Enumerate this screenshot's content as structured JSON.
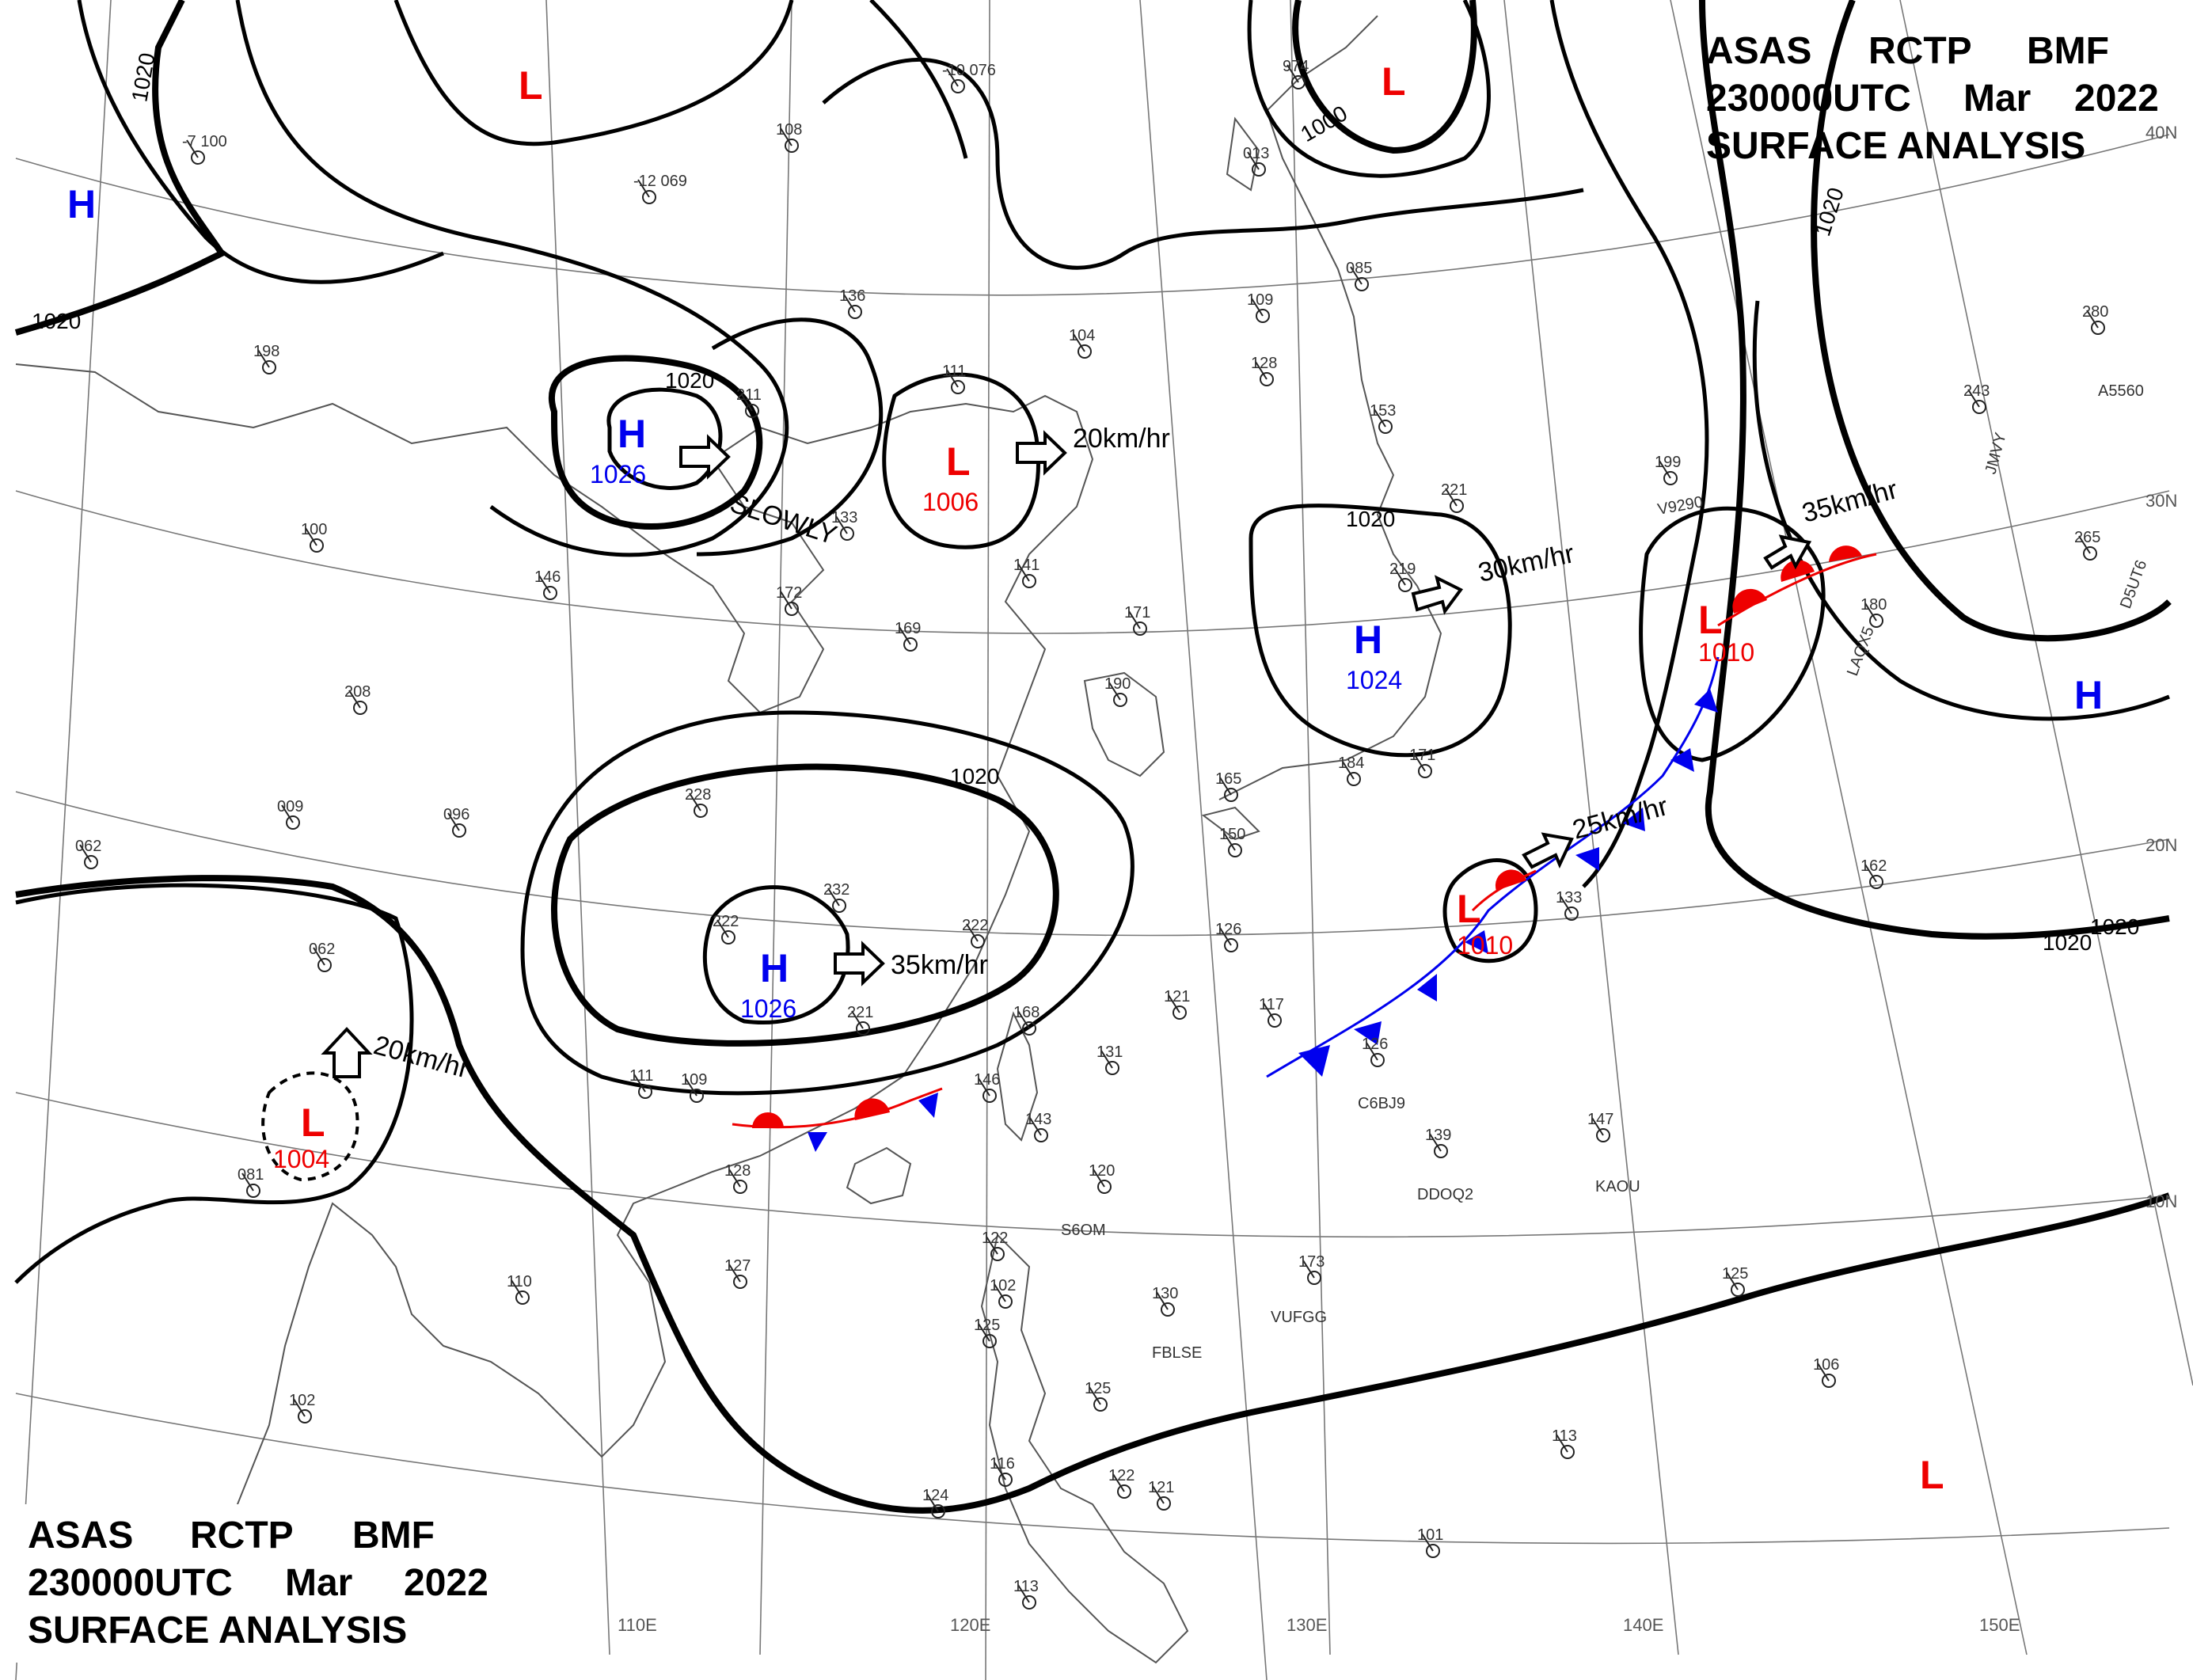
{
  "header": {
    "line1": [
      "ASAS",
      "RCTP",
      "BMF"
    ],
    "line2": [
      "230000UTC",
      "Mar",
      "2022"
    ],
    "line3": "SURFACE ANALYSIS"
  },
  "colors": {
    "high": "#0000ee",
    "low": "#ee0000",
    "isobar": "#000000",
    "coastline": "#555555",
    "grid": "#777777",
    "cold_front": "#0000ee",
    "warm_front": "#ee0000"
  },
  "grid_labels": {
    "longitudes": [
      "110E",
      "120E",
      "130E",
      "140E",
      "150E"
    ],
    "latitudes": [
      "40N",
      "30N",
      "20N",
      "10N"
    ]
  },
  "isobar_labels": [
    "1020",
    "1020",
    "1020",
    "1020",
    "1020",
    "1000",
    "1020",
    "1020",
    "1020"
  ],
  "pressure_systems": [
    {
      "type": "H",
      "value": ""
    },
    {
      "type": "L",
      "value": ""
    },
    {
      "type": "L",
      "value": ""
    },
    {
      "type": "H",
      "value": "1026"
    },
    {
      "type": "L",
      "value": "1006"
    },
    {
      "type": "H",
      "value": "1024"
    },
    {
      "type": "L",
      "value": "1010"
    },
    {
      "type": "H",
      "value": ""
    },
    {
      "type": "H",
      "value": "1026"
    },
    {
      "type": "L",
      "value": "1010"
    },
    {
      "type": "L",
      "value": "1004"
    },
    {
      "type": "L",
      "value": ""
    }
  ],
  "motions": [
    "20km/hr",
    "SLOWLY",
    "30km/hr",
    "35km/hr",
    "25km/hr",
    "35km/hr",
    "20km/hr"
  ],
  "ship_callsigns": [
    "A5560",
    "JMVY",
    "D5UT6",
    "LAQX5",
    "V9290",
    "C6BJ9",
    "DDOQ2",
    "KAOU",
    "S6OM",
    "FBLSE",
    "VUFGG"
  ],
  "stations": [
    {
      "t": "-10 076"
    },
    {
      "t": "974"
    },
    {
      "t": "-7 100"
    },
    {
      "t": "108"
    },
    {
      "t": "-12 069"
    },
    {
      "t": "013"
    },
    {
      "t": "085"
    },
    {
      "t": "198"
    },
    {
      "t": "211"
    },
    {
      "t": "136"
    },
    {
      "t": "104"
    },
    {
      "t": "111"
    },
    {
      "t": "109"
    },
    {
      "t": "128"
    },
    {
      "t": "153"
    },
    {
      "t": "199"
    },
    {
      "t": "280"
    },
    {
      "t": "243"
    },
    {
      "t": "265"
    },
    {
      "t": "172"
    },
    {
      "t": "133"
    },
    {
      "t": "100"
    },
    {
      "t": "146"
    },
    {
      "t": "141"
    },
    {
      "t": "171"
    },
    {
      "t": "221"
    },
    {
      "t": "219"
    },
    {
      "t": "180"
    },
    {
      "t": "208"
    },
    {
      "t": "169"
    },
    {
      "t": "190"
    },
    {
      "t": "184"
    },
    {
      "t": "171"
    },
    {
      "t": "009"
    },
    {
      "t": "096"
    },
    {
      "t": "062"
    },
    {
      "t": "228"
    },
    {
      "t": "165"
    },
    {
      "t": "150"
    },
    {
      "t": "232"
    },
    {
      "t": "222"
    },
    {
      "t": "222"
    },
    {
      "t": "126"
    },
    {
      "t": "133"
    },
    {
      "t": "162"
    },
    {
      "t": "062"
    },
    {
      "t": "221"
    },
    {
      "t": "121"
    },
    {
      "t": "117"
    },
    {
      "t": "168"
    },
    {
      "t": "131"
    },
    {
      "t": "126"
    },
    {
      "t": "139"
    },
    {
      "t": "147"
    },
    {
      "t": "081"
    },
    {
      "t": "111"
    },
    {
      "t": "109"
    },
    {
      "t": "146"
    },
    {
      "t": "143"
    },
    {
      "t": "120"
    },
    {
      "t": "128"
    },
    {
      "t": "110"
    },
    {
      "t": "127"
    },
    {
      "t": "122"
    },
    {
      "t": "102"
    },
    {
      "t": "125"
    },
    {
      "t": "130"
    },
    {
      "t": "173"
    },
    {
      "t": "125"
    },
    {
      "t": "106"
    },
    {
      "t": "102"
    },
    {
      "t": "125"
    },
    {
      "t": "113"
    },
    {
      "t": "116"
    },
    {
      "t": "122"
    },
    {
      "t": "121"
    },
    {
      "t": "124"
    },
    {
      "t": "101"
    },
    {
      "t": "113"
    }
  ]
}
